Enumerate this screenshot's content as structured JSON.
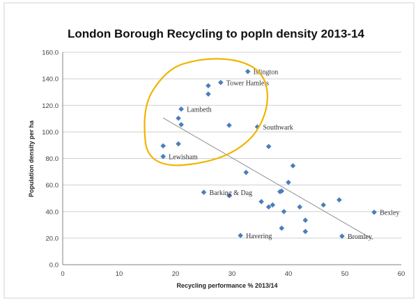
{
  "chart_data": {
    "type": "scatter",
    "title": "London Borough Recycling to popln density 2013-14",
    "xlabel": "Recycling performance % 2013/14",
    "ylabel": "Population density per ha",
    "xlim": [
      0,
      60
    ],
    "ylim": [
      0,
      160
    ],
    "x_ticks": [
      0,
      10,
      20,
      30,
      40,
      50,
      60
    ],
    "x_tick_labels": [
      "0",
      "10",
      "20",
      "30",
      "40",
      "50",
      "60"
    ],
    "y_ticks": [
      0,
      20,
      40,
      60,
      80,
      100,
      120,
      140,
      160
    ],
    "y_tick_labels": [
      "0.0",
      "20.0",
      "40.0",
      "60.0",
      "80.0",
      "100.0",
      "120.0",
      "140.0",
      "160.0"
    ],
    "grid": "horizontal",
    "legend": "none",
    "marker_color": "#4a7ebb",
    "trendline_color": "#8c8c8c",
    "annotation_color": "#f0b400",
    "points": [
      {
        "x": 32.8,
        "y": 145.5,
        "label": "Islington"
      },
      {
        "x": 28.0,
        "y": 137.2,
        "label": "Tower Hamlets"
      },
      {
        "x": 25.8,
        "y": 134.8,
        "label": ""
      },
      {
        "x": 25.8,
        "y": 128.5,
        "label": ""
      },
      {
        "x": 21.0,
        "y": 117.2,
        "label": "Lambeth"
      },
      {
        "x": 20.5,
        "y": 110.3,
        "label": ""
      },
      {
        "x": 21.0,
        "y": 105.5,
        "label": ""
      },
      {
        "x": 29.5,
        "y": 105.0,
        "label": ""
      },
      {
        "x": 34.5,
        "y": 103.8,
        "label": "Southwark"
      },
      {
        "x": 17.8,
        "y": 89.5,
        "label": ""
      },
      {
        "x": 20.5,
        "y": 91.0,
        "label": ""
      },
      {
        "x": 36.5,
        "y": 89.0,
        "label": ""
      },
      {
        "x": 17.8,
        "y": 81.5,
        "label": "Lewisham"
      },
      {
        "x": 40.8,
        "y": 74.5,
        "label": ""
      },
      {
        "x": 32.5,
        "y": 69.5,
        "label": ""
      },
      {
        "x": 40.0,
        "y": 62.0,
        "label": ""
      },
      {
        "x": 25.0,
        "y": 54.5,
        "label": "Barking & Dag"
      },
      {
        "x": 29.5,
        "y": 52.0,
        "label": ""
      },
      {
        "x": 38.8,
        "y": 55.5,
        "label": ""
      },
      {
        "x": 38.5,
        "y": 55.0,
        "label": ""
      },
      {
        "x": 35.2,
        "y": 47.5,
        "label": ""
      },
      {
        "x": 36.5,
        "y": 43.5,
        "label": ""
      },
      {
        "x": 37.2,
        "y": 45.0,
        "label": ""
      },
      {
        "x": 39.2,
        "y": 40.0,
        "label": ""
      },
      {
        "x": 42.0,
        "y": 43.5,
        "label": ""
      },
      {
        "x": 46.2,
        "y": 45.0,
        "label": ""
      },
      {
        "x": 49.0,
        "y": 48.8,
        "label": ""
      },
      {
        "x": 55.2,
        "y": 39.5,
        "label": "Bexley"
      },
      {
        "x": 43.0,
        "y": 33.5,
        "label": ""
      },
      {
        "x": 38.8,
        "y": 27.5,
        "label": ""
      },
      {
        "x": 43.0,
        "y": 25.0,
        "label": ""
      },
      {
        "x": 31.5,
        "y": 22.0,
        "label": "Havering"
      },
      {
        "x": 49.5,
        "y": 21.5,
        "label": "Bromley"
      }
    ],
    "trendline": {
      "x": [
        17.8,
        55.0
      ],
      "y": [
        110.5,
        19.0
      ]
    }
  }
}
